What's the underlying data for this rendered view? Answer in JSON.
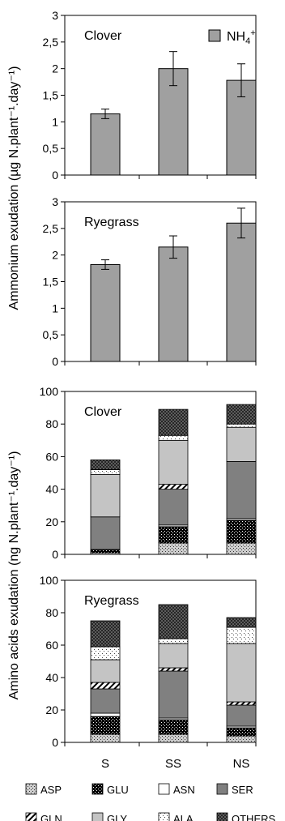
{
  "figure": {
    "top_ylabel": "Ammonium exudation (µg N.plant⁻¹.day⁻¹)",
    "bottom_ylabel": "Amino acids exudation (ng N.plant⁻¹.day⁻¹)"
  },
  "chart_data": [
    {
      "type": "bar",
      "title": "Clover",
      "categories": [
        "S",
        "SS",
        "NS"
      ],
      "ylim": [
        0,
        3
      ],
      "yticks": [
        "0",
        "0,5",
        "1",
        "1,5",
        "2",
        "2,5",
        "3"
      ],
      "series": [
        {
          "name": "NH4+",
          "values": [
            1.15,
            2.0,
            1.78
          ],
          "errors": [
            0.09,
            0.32,
            0.31
          ]
        }
      ],
      "legend": "top-right",
      "grid": false
    },
    {
      "type": "bar",
      "title": "Ryegrass",
      "categories": [
        "S",
        "SS",
        "NS"
      ],
      "ylim": [
        0,
        3
      ],
      "yticks": [
        "0",
        "0,5",
        "1",
        "1,5",
        "2",
        "2,5",
        "3"
      ],
      "series": [
        {
          "name": "NH4+",
          "values": [
            1.82,
            2.15,
            2.6
          ],
          "errors": [
            0.09,
            0.21,
            0.28
          ]
        }
      ],
      "grid": false
    },
    {
      "type": "bar",
      "stacked": true,
      "title": "Clover",
      "categories": [
        "S",
        "SS",
        "NS"
      ],
      "ylim": [
        0,
        100
      ],
      "yticks": [
        "0",
        "20",
        "40",
        "60",
        "80",
        "100"
      ],
      "series": [
        {
          "name": "ASP",
          "values": [
            1,
            7,
            7
          ]
        },
        {
          "name": "GLU",
          "values": [
            2,
            10,
            14
          ]
        },
        {
          "name": "ASN",
          "values": [
            0,
            1,
            1
          ]
        },
        {
          "name": "SER",
          "values": [
            20,
            22,
            35
          ]
        },
        {
          "name": "GLN",
          "values": [
            0,
            3,
            0
          ]
        },
        {
          "name": "GLY",
          "values": [
            26,
            27,
            21
          ]
        },
        {
          "name": "ALA",
          "values": [
            3,
            3,
            2
          ]
        },
        {
          "name": "OTHERS",
          "values": [
            6,
            16,
            12
          ]
        }
      ],
      "legend": "bottom",
      "grid": false
    },
    {
      "type": "bar",
      "stacked": true,
      "title": "Ryegrass",
      "categories": [
        "S",
        "SS",
        "NS"
      ],
      "ylim": [
        0,
        100
      ],
      "yticks": [
        "0",
        "20",
        "40",
        "60",
        "80",
        "100"
      ],
      "series": [
        {
          "name": "ASP",
          "values": [
            5,
            5,
            4
          ]
        },
        {
          "name": "GLU",
          "values": [
            11,
            9,
            5
          ]
        },
        {
          "name": "ASN",
          "values": [
            2,
            1,
            1
          ]
        },
        {
          "name": "SER",
          "values": [
            15,
            29,
            13
          ]
        },
        {
          "name": "GLN",
          "values": [
            4,
            2,
            2
          ]
        },
        {
          "name": "GLY",
          "values": [
            14,
            15,
            36
          ]
        },
        {
          "name": "ALA",
          "values": [
            8,
            3,
            10
          ]
        },
        {
          "name": "OTHERS",
          "values": [
            16,
            21,
            6
          ]
        }
      ],
      "legend": "bottom",
      "grid": false
    }
  ]
}
